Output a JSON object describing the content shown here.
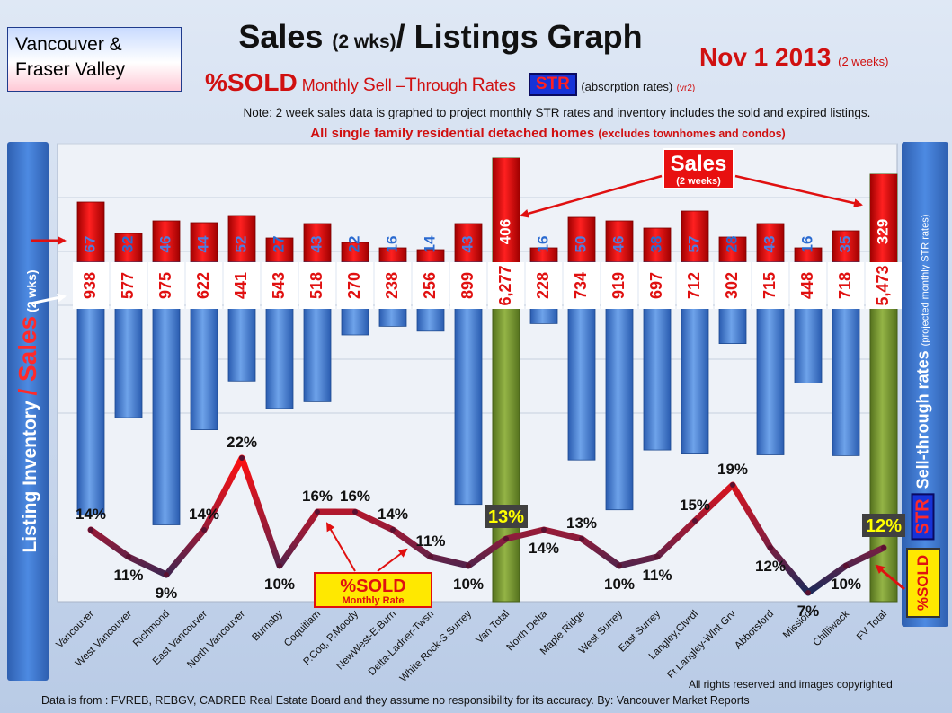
{
  "region": {
    "line1": "Vancouver &",
    "line2": "Fraser Valley"
  },
  "title": {
    "main": "Sales ",
    "paren": "(2 wks)",
    "rest": "/ Listings Graph"
  },
  "date": {
    "main": "Nov 1 2013 ",
    "sub": "(2 weeks)"
  },
  "subtitle": {
    "sold": "%SOLD",
    "p1": " Monthly ",
    "S": "S",
    "p2": "ell –",
    "T": "T",
    "p3": "hrough ",
    "R": "R",
    "p4": "ates",
    "str": "STR",
    "absorption": "(absorption rates)",
    "version": "(vr2)"
  },
  "note": "Note: 2 week sales data is graphed to project monthly STR rates and inventory includes the sold and expired listings.",
  "note2": {
    "main": "All single family residential detached homes ",
    "sub": "(excludes townhomes and condos)"
  },
  "left_axis": {
    "part1": "Listing Inventory ",
    "slash": "/ ",
    "sales": "Sales",
    "small": " (2 wks)"
  },
  "right_axis": {
    "str": "STR",
    "main": " Sell-through rates",
    "small": "(projected monthly STR rates)"
  },
  "sold_badge": "%SOLD",
  "callouts": {
    "sales": {
      "main": "Sales",
      "sub": "(2 weeks)"
    },
    "sold": {
      "main": "%SOLD",
      "sub": "Monthly Rate"
    }
  },
  "copyright": "All rights reserved and images copyrighted",
  "footer": "Data is from : FVREB, REBGV, CADREB Real Estate Board and they assume no responsibility for its accuracy. By: Vancouver Market Reports",
  "colors": {
    "sales": "#e81010",
    "listings": "#3f7fd6",
    "total": "#7a9a2e",
    "line_high": "#ff1010",
    "line_low": "#202a5a"
  },
  "chart_data": {
    "type": "bar",
    "categories": [
      "Vancouver",
      "West Vancouver",
      "Richmond",
      "East Vancouver",
      "North Vancouver",
      "Burnaby",
      "Coquitlam",
      "P.Coq, P.Moody",
      "NewWest-E.Burn",
      "Delta-Ladner-Twsn",
      "White Rock-S.Surrey",
      "Van Total",
      "North Delta",
      "Maple Ridge",
      "West Surrey",
      "East Surrey",
      "Langley,Clvrdl",
      "Ft Langley-Wlnt Grv",
      "Abbotsford",
      "Mission",
      "Chilliwack",
      "FV Total"
    ],
    "series": [
      {
        "name": "Sales",
        "values": [
          67,
          32,
          46,
          44,
          52,
          27,
          43,
          22,
          16,
          14,
          43,
          406,
          16,
          50,
          46,
          38,
          57,
          28,
          43,
          16,
          35,
          329
        ]
      },
      {
        "name": "Listing Inventory",
        "values": [
          938,
          577,
          975,
          622,
          441,
          543,
          518,
          270,
          238,
          256,
          899,
          6277,
          228,
          734,
          919,
          697,
          712,
          302,
          715,
          448,
          718,
          5473
        ]
      },
      {
        "name": "%SOLD",
        "values": [
          14,
          11,
          9,
          14,
          22,
          10,
          16,
          16,
          14,
          11,
          10,
          13,
          14,
          13,
          10,
          11,
          15,
          19,
          12,
          7,
          10,
          12
        ]
      }
    ],
    "value_labels": {
      "sales": [
        "67",
        "32",
        "46",
        "44",
        "52",
        "27",
        "43",
        "22",
        "16",
        "14",
        "43",
        "406",
        "16",
        "50",
        "46",
        "38",
        "57",
        "28",
        "43",
        "16",
        "35",
        "329"
      ],
      "listings": [
        "938",
        "577",
        "975",
        "622",
        "441",
        "543",
        "518",
        "270",
        "238",
        "256",
        "899",
        "6,277",
        "228",
        "734",
        "919",
        "697",
        "712",
        "302",
        "715",
        "448",
        "718",
        "5,473"
      ],
      "sold": [
        "14%",
        "11%",
        "9%",
        "14%",
        "22%",
        "10%",
        "16%",
        "16%",
        "14%",
        "11%",
        "10%",
        "13%",
        "14%",
        "13%",
        "10%",
        "11%",
        "15%",
        "19%",
        "12%",
        "7%",
        "10%",
        "12%"
      ]
    },
    "totals": [
      "Van Total",
      "FV Total"
    ],
    "blue_label_indexes": [
      1,
      5,
      7,
      8,
      9,
      12,
      15,
      17,
      19
    ],
    "grid": true
  }
}
